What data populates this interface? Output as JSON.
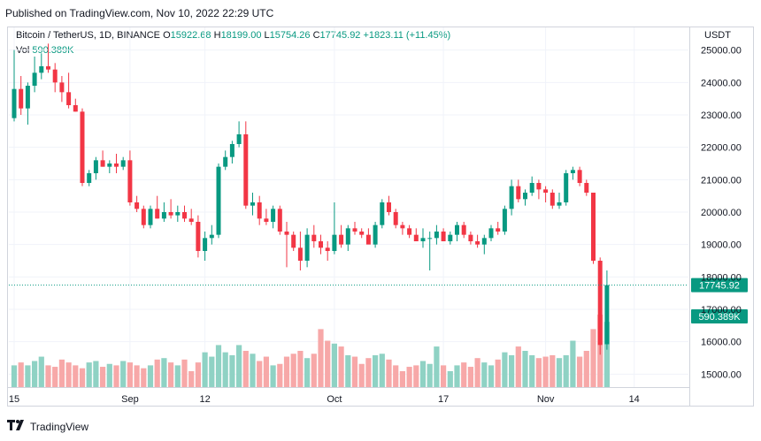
{
  "header": {
    "published_text": "Published on TradingView.com, Nov 10, 2022 22:29 UTC"
  },
  "legend": {
    "symbol": "Bitcoin / TetherUS, 1D, BINANCE",
    "open_label": "O",
    "open": "15922.68",
    "high_label": "H",
    "high": "18199.00",
    "low_label": "L",
    "low": "15754.26",
    "close_label": "C",
    "close": "17745.92",
    "change": "+1823.11 (+11.45%)",
    "vol_label": "Vol",
    "vol": "590.389K"
  },
  "price_axis": {
    "currency": "USDT"
  },
  "footer": {
    "brand": "TradingView"
  },
  "colors": {
    "up": "#089981",
    "down": "#f23645",
    "up_vol": "#8fd2c4",
    "down_vol": "#f7a8a8",
    "grid": "#f0f3fa"
  },
  "chart_data": {
    "type": "candlestick",
    "ylim": [
      14600,
      25700
    ],
    "y_ticks": [
      "15000.00",
      "16000.00",
      "17000.00",
      "18000.00",
      "19000.00",
      "20000.00",
      "21000.00",
      "22000.00",
      "23000.00",
      "24000.00",
      "25000.00"
    ],
    "x_ticks": [
      {
        "label": "15",
        "day": 0
      },
      {
        "label": "Sep",
        "day": 17
      },
      {
        "label": "12",
        "day": 28
      },
      {
        "label": "Oct",
        "day": 47
      },
      {
        "label": "17",
        "day": 63
      },
      {
        "label": "Nov",
        "day": 78
      },
      {
        "label": "14",
        "day": 91
      }
    ],
    "last_price_label": "17745.92",
    "last_price": 17745.92,
    "volume_label": "590.389K",
    "candles": [
      {
        "o": 22900,
        "h": 25000,
        "l": 22800,
        "c": 23800
      },
      {
        "o": 23800,
        "h": 24200,
        "l": 23000,
        "c": 23200
      },
      {
        "o": 23200,
        "h": 24000,
        "l": 22700,
        "c": 23900
      },
      {
        "o": 23900,
        "h": 24800,
        "l": 23700,
        "c": 24300
      },
      {
        "o": 24300,
        "h": 24900,
        "l": 24100,
        "c": 24500
      },
      {
        "o": 24500,
        "h": 25200,
        "l": 24300,
        "c": 24400
      },
      {
        "o": 24400,
        "h": 24600,
        "l": 23700,
        "c": 24000
      },
      {
        "o": 24000,
        "h": 24200,
        "l": 23400,
        "c": 23700
      },
      {
        "o": 23700,
        "h": 24300,
        "l": 23200,
        "c": 23300
      },
      {
        "o": 23300,
        "h": 23500,
        "l": 23100,
        "c": 23100
      },
      {
        "o": 23100,
        "h": 23200,
        "l": 20800,
        "c": 20900
      },
      {
        "o": 20900,
        "h": 21300,
        "l": 20800,
        "c": 21200
      },
      {
        "o": 21200,
        "h": 21700,
        "l": 21000,
        "c": 21600
      },
      {
        "o": 21600,
        "h": 21900,
        "l": 21400,
        "c": 21400
      },
      {
        "o": 21400,
        "h": 21600,
        "l": 21200,
        "c": 21500
      },
      {
        "o": 21500,
        "h": 21800,
        "l": 21200,
        "c": 21400
      },
      {
        "o": 21400,
        "h": 21700,
        "l": 21300,
        "c": 21600
      },
      {
        "o": 21600,
        "h": 21900,
        "l": 20200,
        "c": 20300
      },
      {
        "o": 20300,
        "h": 20500,
        "l": 20000,
        "c": 20100
      },
      {
        "o": 20100,
        "h": 20200,
        "l": 19500,
        "c": 19600
      },
      {
        "o": 19600,
        "h": 20200,
        "l": 19500,
        "c": 20100
      },
      {
        "o": 20100,
        "h": 20500,
        "l": 19800,
        "c": 19800
      },
      {
        "o": 19800,
        "h": 20300,
        "l": 19700,
        "c": 20000
      },
      {
        "o": 20000,
        "h": 20400,
        "l": 19800,
        "c": 19900
      },
      {
        "o": 19900,
        "h": 20200,
        "l": 19700,
        "c": 20000
      },
      {
        "o": 20000,
        "h": 20200,
        "l": 19700,
        "c": 19800
      },
      {
        "o": 19800,
        "h": 20100,
        "l": 19600,
        "c": 19700
      },
      {
        "o": 19700,
        "h": 19900,
        "l": 18600,
        "c": 18800
      },
      {
        "o": 18800,
        "h": 19400,
        "l": 18500,
        "c": 19200
      },
      {
        "o": 19200,
        "h": 19600,
        "l": 19000,
        "c": 19300
      },
      {
        "o": 19300,
        "h": 21500,
        "l": 19200,
        "c": 21400
      },
      {
        "o": 21400,
        "h": 21900,
        "l": 21300,
        "c": 21700
      },
      {
        "o": 21700,
        "h": 22200,
        "l": 21500,
        "c": 22100
      },
      {
        "o": 22100,
        "h": 22800,
        "l": 22000,
        "c": 22400
      },
      {
        "o": 22400,
        "h": 22800,
        "l": 20100,
        "c": 20200
      },
      {
        "o": 20200,
        "h": 20600,
        "l": 19900,
        "c": 20300
      },
      {
        "o": 20300,
        "h": 20500,
        "l": 19600,
        "c": 19800
      },
      {
        "o": 19800,
        "h": 20100,
        "l": 19600,
        "c": 19700
      },
      {
        "o": 19700,
        "h": 20200,
        "l": 19500,
        "c": 20100
      },
      {
        "o": 20100,
        "h": 20200,
        "l": 19300,
        "c": 19400
      },
      {
        "o": 19400,
        "h": 19700,
        "l": 18300,
        "c": 19300
      },
      {
        "o": 19300,
        "h": 19400,
        "l": 18800,
        "c": 18900
      },
      {
        "o": 18900,
        "h": 19400,
        "l": 18200,
        "c": 18500
      },
      {
        "o": 18500,
        "h": 19500,
        "l": 18300,
        "c": 19300
      },
      {
        "o": 19300,
        "h": 19600,
        "l": 18900,
        "c": 19100
      },
      {
        "o": 19100,
        "h": 19300,
        "l": 18700,
        "c": 18900
      },
      {
        "o": 18900,
        "h": 19100,
        "l": 18500,
        "c": 18800
      },
      {
        "o": 18800,
        "h": 20300,
        "l": 18700,
        "c": 19300
      },
      {
        "o": 19300,
        "h": 19600,
        "l": 18900,
        "c": 19000
      },
      {
        "o": 19000,
        "h": 19600,
        "l": 18800,
        "c": 19500
      },
      {
        "o": 19500,
        "h": 19700,
        "l": 19300,
        "c": 19400
      },
      {
        "o": 19400,
        "h": 19500,
        "l": 19200,
        "c": 19300
      },
      {
        "o": 19300,
        "h": 19500,
        "l": 19100,
        "c": 19000
      },
      {
        "o": 19000,
        "h": 19700,
        "l": 18900,
        "c": 19600
      },
      {
        "o": 19600,
        "h": 20400,
        "l": 19500,
        "c": 20300
      },
      {
        "o": 20300,
        "h": 20500,
        "l": 19900,
        "c": 20000
      },
      {
        "o": 20000,
        "h": 20100,
        "l": 19500,
        "c": 19600
      },
      {
        "o": 19600,
        "h": 19700,
        "l": 19300,
        "c": 19500
      },
      {
        "o": 19500,
        "h": 19600,
        "l": 19200,
        "c": 19300
      },
      {
        "o": 19300,
        "h": 19500,
        "l": 19100,
        "c": 19100
      },
      {
        "o": 19100,
        "h": 19500,
        "l": 18900,
        "c": 19200
      },
      {
        "o": 19200,
        "h": 19400,
        "l": 18200,
        "c": 19200
      },
      {
        "o": 19200,
        "h": 19600,
        "l": 19000,
        "c": 19400
      },
      {
        "o": 19400,
        "h": 19500,
        "l": 19200,
        "c": 19100
      },
      {
        "o": 19100,
        "h": 19400,
        "l": 19000,
        "c": 19300
      },
      {
        "o": 19300,
        "h": 19700,
        "l": 19100,
        "c": 19600
      },
      {
        "o": 19600,
        "h": 19700,
        "l": 19200,
        "c": 19300
      },
      {
        "o": 19300,
        "h": 19400,
        "l": 19000,
        "c": 19100
      },
      {
        "o": 19100,
        "h": 19300,
        "l": 18900,
        "c": 19000
      },
      {
        "o": 19000,
        "h": 19300,
        "l": 18700,
        "c": 19200
      },
      {
        "o": 19200,
        "h": 19600,
        "l": 19100,
        "c": 19500
      },
      {
        "o": 19500,
        "h": 19700,
        "l": 19300,
        "c": 19400
      },
      {
        "o": 19400,
        "h": 20200,
        "l": 19300,
        "c": 20100
      },
      {
        "o": 20100,
        "h": 21000,
        "l": 19900,
        "c": 20800
      },
      {
        "o": 20800,
        "h": 21000,
        "l": 20300,
        "c": 20400
      },
      {
        "o": 20400,
        "h": 20700,
        "l": 20200,
        "c": 20600
      },
      {
        "o": 20600,
        "h": 21100,
        "l": 20500,
        "c": 20900
      },
      {
        "o": 20900,
        "h": 21000,
        "l": 20400,
        "c": 20700
      },
      {
        "o": 20700,
        "h": 20800,
        "l": 20300,
        "c": 20600
      },
      {
        "o": 20600,
        "h": 20700,
        "l": 20100,
        "c": 20200
      },
      {
        "o": 20200,
        "h": 20600,
        "l": 20100,
        "c": 20300
      },
      {
        "o": 20300,
        "h": 21300,
        "l": 20200,
        "c": 21200
      },
      {
        "o": 21200,
        "h": 21400,
        "l": 21000,
        "c": 21300
      },
      {
        "o": 21300,
        "h": 21400,
        "l": 20800,
        "c": 20900
      },
      {
        "o": 20900,
        "h": 21000,
        "l": 20500,
        "c": 20600
      },
      {
        "o": 20600,
        "h": 20600,
        "l": 18400,
        "c": 18500
      },
      {
        "o": 18500,
        "h": 18600,
        "l": 15600,
        "c": 15900
      },
      {
        "o": 15922.68,
        "h": 18199,
        "l": 15754.26,
        "c": 17745.92
      }
    ],
    "volumes": [
      0.3,
      0.34,
      0.3,
      0.36,
      0.42,
      0.3,
      0.28,
      0.38,
      0.34,
      0.3,
      0.26,
      0.34,
      0.36,
      0.28,
      0.32,
      0.3,
      0.36,
      0.34,
      0.3,
      0.26,
      0.3,
      0.38,
      0.4,
      0.34,
      0.3,
      0.38,
      0.22,
      0.34,
      0.48,
      0.42,
      0.58,
      0.48,
      0.44,
      0.58,
      0.5,
      0.46,
      0.36,
      0.42,
      0.3,
      0.32,
      0.42,
      0.46,
      0.5,
      0.4,
      0.46,
      0.8,
      0.64,
      0.6,
      0.56,
      0.44,
      0.42,
      0.32,
      0.4,
      0.44,
      0.46,
      0.38,
      0.3,
      0.22,
      0.28,
      0.3,
      0.36,
      0.32,
      0.56,
      0.3,
      0.22,
      0.3,
      0.34,
      0.28,
      0.4,
      0.34,
      0.3,
      0.38,
      0.48,
      0.44,
      0.56,
      0.5,
      0.44,
      0.4,
      0.42,
      0.44,
      0.4,
      0.44,
      0.64,
      0.42,
      0.5,
      0.8,
      1.0,
      0.9
    ]
  }
}
